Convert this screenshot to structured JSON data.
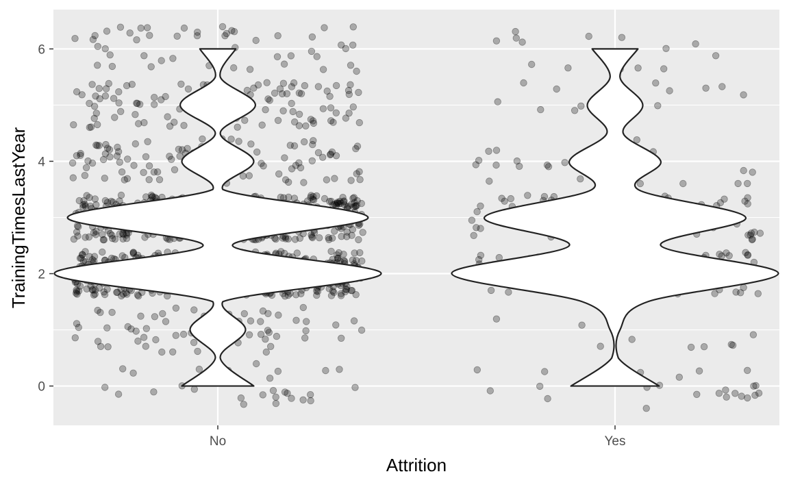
{
  "chart_data": {
    "type": "violin",
    "xlabel": "Attrition",
    "ylabel": "TrainingTimesLastYear",
    "categories": [
      "No",
      "Yes"
    ],
    "ylim": [
      -0.7,
      6.7
    ],
    "yticks": [
      0,
      2,
      4,
      6
    ],
    "grid": true,
    "jitter": {
      "width": 0.4,
      "height": 0.4
    },
    "colors": {
      "panel": "#ebebeb",
      "grid": "#ffffff",
      "point": "#000000",
      "violin_fill": "#ffffff",
      "violin_stroke": "#222222"
    },
    "counts": [
      {
        "group": "No",
        "values": [
          0,
          1,
          2,
          3,
          4,
          5,
          6
        ],
        "n": [
          27,
          62,
          449,
          414,
          97,
          105,
          51
        ]
      },
      {
        "group": "Yes",
        "values": [
          0,
          1,
          2,
          3,
          4,
          5,
          6
        ],
        "n": [
          27,
          9,
          98,
          77,
          26,
          14,
          14
        ]
      }
    ],
    "violin_density": [
      {
        "group": "No",
        "y": [
          0,
          0.5,
          1,
          1.5,
          2,
          2.5,
          3,
          3.5,
          4,
          4.5,
          5,
          5.5,
          6
        ],
        "width": [
          0.22,
          0.015,
          0.17,
          0.03,
          1.0,
          0.09,
          0.92,
          0.03,
          0.22,
          0.015,
          0.23,
          0.015,
          0.11
        ]
      },
      {
        "group": "Yes",
        "y": [
          0,
          0.5,
          1,
          1.5,
          2,
          2.5,
          3,
          3.5,
          4,
          4.5,
          5,
          5.5,
          6
        ],
        "width": [
          0.27,
          0.02,
          0.03,
          0.2,
          1.0,
          0.28,
          0.8,
          0.14,
          0.28,
          0.05,
          0.17,
          0.03,
          0.14
        ]
      }
    ]
  }
}
